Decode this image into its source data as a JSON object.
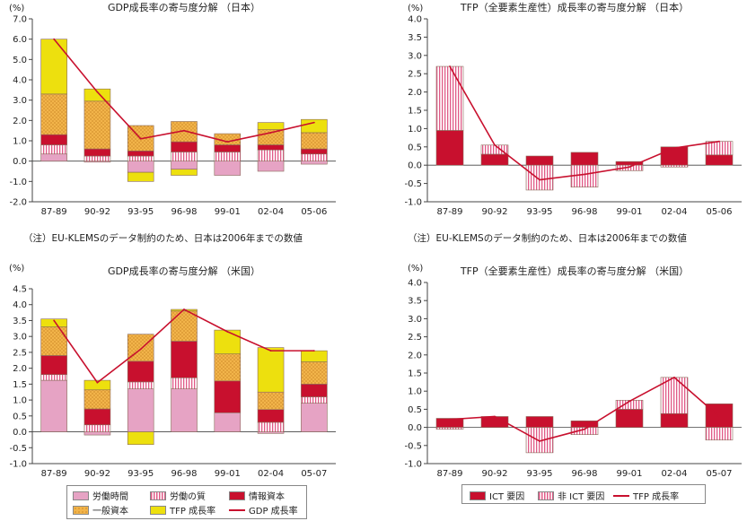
{
  "colors": {
    "labor_hours": "#e6a3c4",
    "labor_quality_stripe": "#e05a87",
    "info_capital": "#c8102e",
    "general_capital": "#f2b44a",
    "tfp": "#ede00e",
    "ict": "#c8102e",
    "non_ict_stripe": "#e05a87",
    "line": "#c8102e"
  },
  "notes": {
    "left": "（注）EU-KLEMSのデータ制約のため、日本は2006年までの数値",
    "right": "（注）EU-KLEMSのデータ制約のため、日本は2006年までの数値"
  },
  "legend_gdp": {
    "labor_hours": "労働時間",
    "labor_quality": "労働の質",
    "info_capital": "情報資本",
    "general_capital": "一般資本",
    "tfp": "TFP 成長率",
    "gdp": "GDP 成長率"
  },
  "legend_tfp": {
    "ict": "ICT 要因",
    "non_ict": "非 ICT 要因",
    "tfp": "TFP 成長率"
  },
  "chart_data": [
    {
      "id": "gdp_japan",
      "type": "bar",
      "stacked": true,
      "title": "GDP成長率の寄与度分解 （日本）",
      "unit": "(%)",
      "categories": [
        "87-89",
        "90-92",
        "93-95",
        "96-98",
        "99-01",
        "02-04",
        "05-06"
      ],
      "ylim": [
        -2.0,
        7.0
      ],
      "yticks": [
        "7.0",
        "6.0",
        "5.0",
        "4.0",
        "3.0",
        "2.0",
        "1.0",
        "0.0",
        "-1.0",
        "-2.0"
      ],
      "series": [
        {
          "key": "labor_hours",
          "values": [
            0.35,
            -0.05,
            -0.55,
            -0.4,
            -0.7,
            -0.5,
            -0.15
          ]
        },
        {
          "key": "labor_quality",
          "values": [
            0.45,
            0.25,
            0.25,
            0.45,
            0.45,
            0.55,
            0.35
          ]
        },
        {
          "key": "info_capital",
          "values": [
            0.5,
            0.35,
            0.25,
            0.5,
            0.35,
            0.25,
            0.25
          ]
        },
        {
          "key": "general_capital",
          "values": [
            2.0,
            2.35,
            1.25,
            1.0,
            0.55,
            0.75,
            0.8
          ]
        },
        {
          "key": "tfp",
          "values": [
            2.7,
            0.6,
            -0.45,
            -0.3,
            0.0,
            0.35,
            0.65
          ]
        }
      ],
      "line": {
        "key": "gdp",
        "values": [
          6.0,
          3.4,
          1.1,
          1.5,
          0.95,
          1.4,
          1.9
        ]
      }
    },
    {
      "id": "tfp_japan",
      "type": "bar",
      "stacked": true,
      "title": "TFP（全要素生産性）成長率の寄与度分解 （日本）",
      "unit": "(%)",
      "categories": [
        "87-89",
        "90-92",
        "93-95",
        "96-98",
        "99-01",
        "02-04",
        "05-06"
      ],
      "ylim": [
        -1.0,
        4.0
      ],
      "yticks": [
        "4.0",
        "3.5",
        "3.0",
        "2.5",
        "2.0",
        "1.5",
        "1.0",
        "0.5",
        "0.0",
        "-0.5",
        "-1.0"
      ],
      "series": [
        {
          "key": "ict",
          "values": [
            0.95,
            0.3,
            0.25,
            0.35,
            0.1,
            0.5,
            0.28
          ]
        },
        {
          "key": "non_ict",
          "values": [
            1.75,
            0.25,
            -0.68,
            -0.6,
            -0.15,
            -0.05,
            0.37
          ]
        }
      ],
      "line": {
        "key": "tfp",
        "values": [
          2.7,
          0.55,
          -0.4,
          -0.25,
          -0.05,
          0.47,
          0.65
        ]
      }
    },
    {
      "id": "gdp_us",
      "type": "bar",
      "stacked": true,
      "title": "GDP成長率の寄与度分解 （米国）",
      "unit": "(%)",
      "categories": [
        "87-89",
        "90-92",
        "93-95",
        "96-98",
        "99-01",
        "02-04",
        "05-07"
      ],
      "ylim": [
        -1.0,
        4.5
      ],
      "yticks": [
        "4.5",
        "4.0",
        "3.5",
        "3.0",
        "2.5",
        "2.0",
        "1.5",
        "1.0",
        "0.5",
        "0.0",
        "-0.5",
        "-1.0"
      ],
      "series": [
        {
          "key": "labor_hours",
          "values": [
            1.62,
            -0.1,
            1.35,
            1.35,
            0.6,
            -0.05,
            0.9
          ]
        },
        {
          "key": "labor_quality",
          "values": [
            0.18,
            0.22,
            0.22,
            0.35,
            0.0,
            0.3,
            0.2
          ]
        },
        {
          "key": "info_capital",
          "values": [
            0.6,
            0.5,
            0.65,
            1.15,
            1.0,
            0.4,
            0.4
          ]
        },
        {
          "key": "general_capital",
          "values": [
            0.9,
            0.6,
            0.85,
            0.95,
            0.85,
            0.55,
            0.7
          ]
        },
        {
          "key": "tfp",
          "values": [
            0.25,
            0.3,
            -0.4,
            0.05,
            0.75,
            1.4,
            0.35
          ]
        }
      ],
      "line": {
        "key": "gdp",
        "values": [
          3.5,
          1.55,
          2.6,
          3.85,
          3.15,
          2.55,
          2.55
        ]
      }
    },
    {
      "id": "tfp_us",
      "type": "bar",
      "stacked": true,
      "title": "TFP（全要素生産性）成長率の寄与度分解 （米国）",
      "unit": "(%)",
      "categories": [
        "87-89",
        "90-92",
        "93-95",
        "96-98",
        "99-01",
        "02-04",
        "05-07"
      ],
      "ylim": [
        -1.0,
        4.0
      ],
      "yticks": [
        "4.0",
        "3.5",
        "3.0",
        "2.5",
        "2.0",
        "1.5",
        "1.0",
        "0.5",
        "0.0",
        "-0.5",
        "-1.0"
      ],
      "series": [
        {
          "key": "ict",
          "values": [
            0.25,
            0.3,
            0.3,
            0.18,
            0.5,
            0.38,
            0.65
          ]
        },
        {
          "key": "non_ict",
          "values": [
            -0.05,
            0.0,
            -0.7,
            -0.2,
            0.25,
            1.0,
            -0.35
          ]
        }
      ],
      "line": {
        "key": "tfp",
        "values": [
          0.22,
          0.3,
          -0.38,
          -0.05,
          0.72,
          1.38,
          0.3
        ]
      }
    }
  ]
}
